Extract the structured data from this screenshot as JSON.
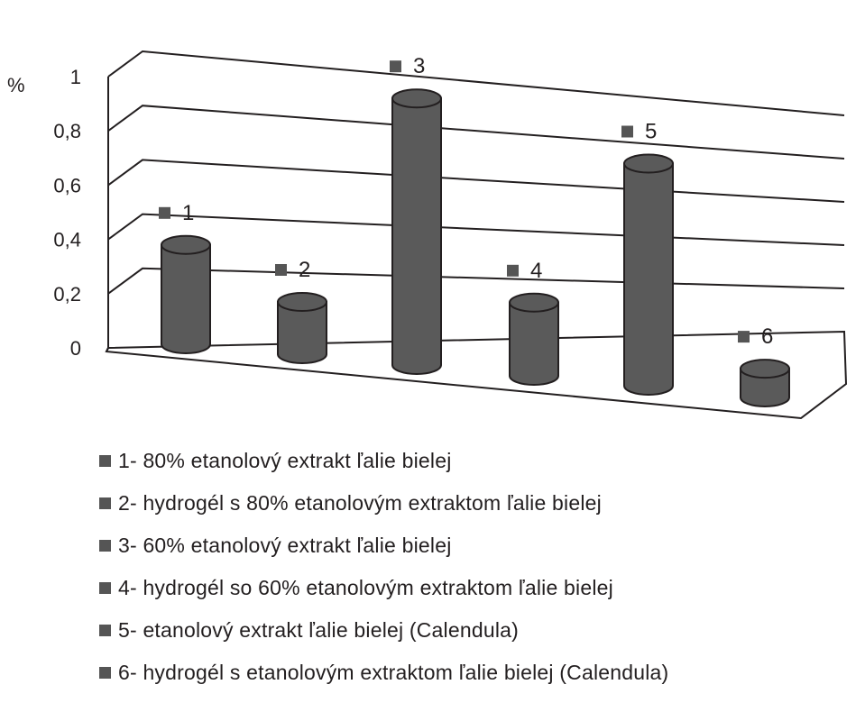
{
  "chart_data": {
    "type": "bar",
    "style": "3d-cylinder",
    "y_unit": "%",
    "ylim": [
      0,
      1
    ],
    "y_ticks": [
      "0",
      "0,2",
      "0,4",
      "0,6",
      "0,8",
      "1"
    ],
    "grid": true,
    "categories": [
      "1",
      "2",
      "3",
      "4",
      "5",
      "6"
    ],
    "values": [
      0.38,
      0.2,
      1.02,
      0.28,
      0.85,
      0.11
    ],
    "bar_color": "#5a5a5a",
    "legend": [
      "1- 80% etanolový extrakt ľalie bielej",
      "2- hydrogél s 80% etanolovým extraktom ľalie bielej",
      "3- 60% etanolový extrakt ľalie bielej",
      "4- hydrogél so 60% etanolovým extraktom ľalie bielej",
      "5- etanolový extrakt ľalie bielej (Calendula)",
      "6- hydrogél s etanolovým extraktom ľalie bielej (Calendula)"
    ]
  }
}
